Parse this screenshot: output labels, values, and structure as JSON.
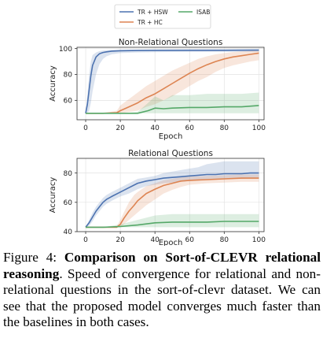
{
  "chart_data": [
    {
      "type": "line",
      "title": "Non-Relational Questions",
      "xlabel": "Epoch",
      "ylabel": "Accuracy",
      "xlim": [
        -5,
        103
      ],
      "ylim": [
        45,
        101
      ],
      "xticks": [
        0,
        20,
        40,
        60,
        80,
        100
      ],
      "yticks": [
        40,
        60,
        80,
        100
      ],
      "grid": true,
      "legend": "top-center, outside",
      "series": [
        {
          "name": "TR + HSW",
          "color": "#4c72b0",
          "x": [
            0,
            1,
            2,
            3,
            4,
            6,
            8,
            10,
            12,
            15,
            20,
            30,
            40,
            60,
            80,
            100
          ],
          "y": [
            50,
            57,
            68,
            79,
            87,
            93.5,
            96,
            97,
            97.5,
            98,
            98.3,
            98.5,
            98.6,
            98.7,
            98.7,
            98.8
          ],
          "lower": [
            50,
            50,
            52,
            58,
            67,
            80,
            88,
            92,
            94,
            95.5,
            96.5,
            97,
            97.2,
            97.4,
            97.5,
            97.6
          ],
          "upper": [
            50,
            64,
            80,
            90,
            95,
            97,
            98,
            98.5,
            98.7,
            99,
            99.1,
            99.2,
            99.3,
            99.4,
            99.4,
            99.5
          ]
        },
        {
          "name": "TR + HC",
          "color": "#dd8452",
          "x": [
            0,
            10,
            18,
            20,
            25,
            30,
            35,
            40,
            45,
            50,
            55,
            60,
            65,
            70,
            75,
            80,
            85,
            90,
            95,
            100
          ],
          "y": [
            50,
            50,
            50.5,
            52,
            55,
            58,
            62,
            65,
            69,
            73,
            77,
            81,
            84.5,
            87.5,
            90,
            92,
            93.5,
            94.5,
            95.5,
            96.5
          ],
          "lower": [
            50,
            50,
            50,
            50,
            51,
            52,
            55,
            57,
            60,
            63,
            67,
            71,
            75,
            78,
            82,
            85,
            87,
            88.5,
            90,
            91
          ],
          "upper": [
            50,
            50,
            52,
            56,
            61,
            66,
            71,
            75,
            79,
            83,
            86,
            89,
            92,
            94,
            95.5,
            96.5,
            97.3,
            97.8,
            98.2,
            98.5
          ]
        },
        {
          "name": "ISAB",
          "color": "#55a868",
          "x": [
            0,
            10,
            20,
            30,
            36,
            40,
            45,
            50,
            60,
            70,
            80,
            90,
            100
          ],
          "y": [
            50,
            50,
            50,
            50,
            52,
            54,
            53.5,
            54,
            54.5,
            54.5,
            55,
            55,
            56
          ],
          "lower": [
            50,
            50,
            50,
            50,
            50,
            50,
            50,
            50,
            50,
            50,
            50,
            50,
            50
          ],
          "upper": [
            50,
            50,
            50,
            51,
            58,
            63,
            60,
            64,
            64,
            65,
            65,
            65,
            66
          ]
        }
      ]
    },
    {
      "type": "line",
      "title": "Relational Questions",
      "xlabel": "Epoch",
      "ylabel": "Accuracy",
      "xlim": [
        -5,
        103
      ],
      "ylim": [
        40,
        90
      ],
      "xticks": [
        0,
        20,
        40,
        60,
        80,
        100
      ],
      "yticks": [
        40,
        60,
        80
      ],
      "grid": true,
      "legend": "top-center, outside",
      "series": [
        {
          "name": "TR + HSW",
          "color": "#4c72b0",
          "x": [
            0,
            2,
            4,
            6,
            8,
            10,
            12,
            15,
            20,
            25,
            30,
            35,
            40,
            45,
            50,
            55,
            60,
            65,
            70,
            75,
            80,
            85,
            90,
            95,
            100
          ],
          "y": [
            43,
            46,
            50,
            54,
            57,
            60,
            62,
            64,
            67,
            70,
            73,
            74.5,
            75.5,
            76.5,
            77,
            77.5,
            78,
            78.5,
            79,
            79,
            79.5,
            79.5,
            79.5,
            80,
            80
          ],
          "lower": [
            43,
            44,
            47,
            51,
            54,
            57,
            59,
            61,
            64,
            66,
            69,
            71,
            72,
            73,
            73.5,
            74,
            74.5,
            75,
            75.5,
            75.5,
            76,
            76,
            76,
            76.5,
            76.5
          ],
          "upper": [
            43,
            48,
            53,
            57,
            60,
            63,
            65,
            67,
            70,
            73,
            76,
            77,
            78,
            80,
            81,
            82,
            83,
            84,
            86,
            87,
            88,
            88,
            88,
            88,
            88
          ]
        },
        {
          "name": "TR + HC",
          "color": "#dd8452",
          "x": [
            0,
            10,
            18,
            20,
            22,
            25,
            28,
            30,
            35,
            40,
            45,
            50,
            55,
            60,
            70,
            80,
            90,
            100
          ],
          "y": [
            43,
            43,
            43,
            45,
            49,
            54,
            58,
            61,
            66,
            69,
            71.5,
            73,
            74.5,
            75,
            75.5,
            76,
            76.5,
            76.5
          ],
          "lower": [
            43,
            43,
            43,
            43,
            45,
            48,
            51,
            53,
            58,
            62,
            66,
            68.5,
            70.5,
            72,
            73,
            73.5,
            74,
            74
          ],
          "upper": [
            43,
            43,
            44,
            48,
            53,
            60,
            65,
            67,
            71,
            73,
            75,
            76,
            77,
            77.5,
            78,
            78.5,
            79,
            79
          ]
        },
        {
          "name": "ISAB",
          "color": "#55a868",
          "x": [
            0,
            10,
            20,
            30,
            40,
            50,
            60,
            70,
            80,
            90,
            100
          ],
          "y": [
            43,
            43,
            43.5,
            44.5,
            46,
            46.5,
            46.5,
            46.5,
            47,
            47,
            47
          ],
          "lower": [
            43,
            43,
            43,
            43,
            43,
            43,
            43,
            43,
            43,
            43,
            43
          ],
          "upper": [
            43,
            43,
            45,
            48,
            51,
            52,
            52,
            52,
            52,
            52,
            52
          ]
        }
      ]
    }
  ],
  "legend": [
    {
      "label": "TR + HSW",
      "color": "#4c72b0"
    },
    {
      "label": "ISAB",
      "color": "#55a868"
    },
    {
      "label": "TR + HC",
      "color": "#dd8452"
    }
  ],
  "caption": {
    "label": "Figure 4:",
    "title": "Comparison on Sort-of-CLEVR relational reasoning",
    "body": ". Speed of convergence for relational and non-relational questions in the sort-of-clevr dataset. We can see that the proposed model converges much faster than the baselines in both cases."
  }
}
